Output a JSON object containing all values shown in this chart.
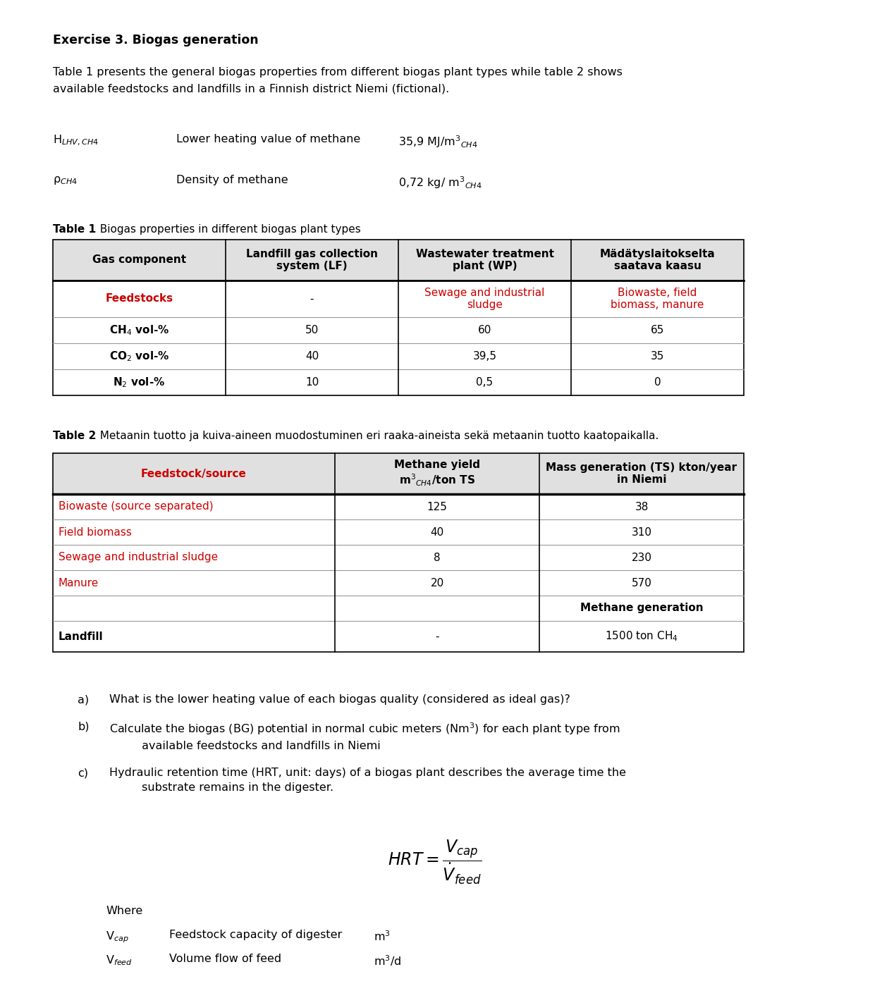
{
  "title": "Exercise 3. Biogas generation",
  "intro_text": "Table 1 presents the general biogas properties from different biogas plant types while table 2 shows\navailable feedstocks and landfills in a Finnish district Niemi (fictional).",
  "param1_symbol": "H$_{LHV,CH4}$",
  "param1_label": "Lower heating value of methane",
  "param1_value": "35,9 MJ/m$^3$$_{CH4}$",
  "param2_symbol": "ρ$_{CH4}$",
  "param2_label": "Density of methane",
  "param2_value": "0,72 kg/ m$^3$$_{CH4}$",
  "table1_headers": [
    "Gas component",
    "Landfill gas collection\nsystem (LF)",
    "Wastewater treatment\nplant (WP)",
    "Mädätyslaitokselta\nsaatava kaasu"
  ],
  "table1_col1": [
    "Feedstocks",
    "CH$_4$ vol-%",
    "CO$_2$ vol-%",
    "N$_2$ vol-%"
  ],
  "table1_col1_bold": [
    false,
    true,
    true,
    true
  ],
  "table1_col1_red": [
    true,
    false,
    false,
    false
  ],
  "table1_col2": [
    "-",
    "50",
    "40",
    "10"
  ],
  "table1_col3": [
    "Sewage and industrial\nsludge",
    "60",
    "39,5",
    "0,5"
  ],
  "table1_col3_red": [
    true,
    false,
    false,
    false
  ],
  "table1_col4": [
    "Biowaste, field\nbiomass, manure",
    "65",
    "35",
    "0"
  ],
  "table1_col4_red": [
    true,
    false,
    false,
    false
  ],
  "table2_col1": [
    "Biowaste (source separated)",
    "Field biomass",
    "Sewage and industrial sludge",
    "Manure",
    "",
    "Landfill"
  ],
  "table2_col1_red": [
    true,
    true,
    true,
    true,
    false,
    false
  ],
  "table2_col1_bold": [
    false,
    false,
    false,
    false,
    false,
    true
  ],
  "table2_col2": [
    "125",
    "40",
    "8",
    "20",
    "",
    "-"
  ],
  "table2_col3": [
    "38",
    "310",
    "230",
    "570",
    "Methane generation",
    "1500 ton CH$_4$"
  ],
  "table2_col3_bold": [
    false,
    false,
    false,
    false,
    true,
    false
  ],
  "bg_color": "#ffffff",
  "text_color": "#000000",
  "red_color": "#cc0000"
}
